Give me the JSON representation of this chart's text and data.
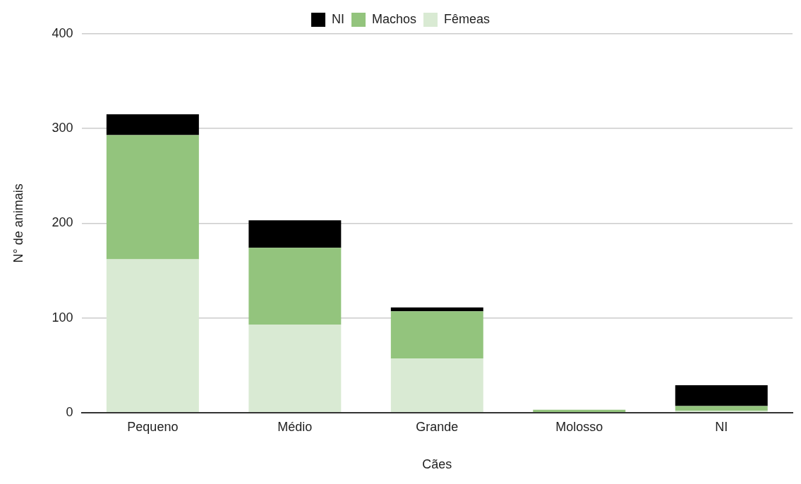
{
  "chart_data": {
    "type": "bar",
    "xlabel": "Cães",
    "ylabel": "N° de animais",
    "categories": [
      "Pequeno",
      "Médio",
      "Grande",
      "Molosso",
      "NI"
    ],
    "stacked": true,
    "series": [
      {
        "name": "Fêmeas",
        "color": "#d9ead3",
        "values": [
          162,
          93,
          57,
          0,
          2
        ]
      },
      {
        "name": "Machos",
        "color": "#93c47d",
        "values": [
          131,
          81,
          50,
          3,
          5
        ]
      },
      {
        "name": "NI",
        "color": "#000000",
        "values": [
          22,
          29,
          4,
          0,
          22
        ]
      }
    ],
    "ylim": [
      0,
      400
    ],
    "yticks": [
      0,
      100,
      200,
      300,
      400
    ],
    "grid": "y",
    "legend": "top"
  }
}
